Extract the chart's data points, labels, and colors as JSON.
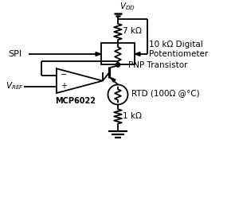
{
  "bg_color": "#ffffff",
  "line_color": "#000000",
  "line_width": 1.3,
  "r1_label": "7 kΩ",
  "r2_label": "10 kΩ Digital\nPotentiometer",
  "r3_label": "RTD (100Ω @°C)",
  "r4_label": "1 kΩ",
  "spi_label": "SPI",
  "transistor_label": "PNP Transistor",
  "opamp_label": "MCP6022",
  "figsize": [
    2.95,
    2.49
  ],
  "dpi": 100
}
